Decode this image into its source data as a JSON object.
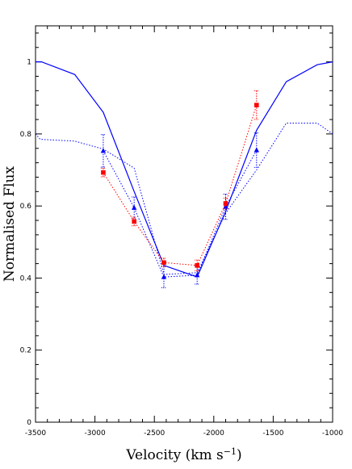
{
  "chart_data": {
    "type": "line",
    "title": "",
    "xlabel": "Velocity (km s",
    "xlabel_sup": "−1",
    "xlabel_close": ")",
    "ylabel": "Normalised Flux",
    "xlim": [
      -3500,
      -1000
    ],
    "ylim": [
      0,
      1.1
    ],
    "x_ticks": [
      -3500,
      -3000,
      -2500,
      -2000,
      -1500,
      -1000
    ],
    "x_tick_labels": [
      "-3500",
      "-3000",
      "-2500",
      "-2000",
      "-1500",
      "-1000"
    ],
    "y_ticks": [
      0,
      0.2,
      0.4,
      0.6,
      0.8,
      1
    ],
    "y_tick_labels": [
      "0",
      "0.2",
      "0.4",
      "0.6",
      "0.8",
      "1"
    ],
    "grid": false,
    "legend": "none",
    "series": [
      {
        "style": "solid-line",
        "color": "#0000ff",
        "x": [
          -3500,
          -3450,
          -3170,
          -2930,
          -2670,
          -2420,
          -2140,
          -1900,
          -1640,
          -1390,
          -1130,
          -1000
        ],
        "y": [
          1.0,
          1.0,
          0.965,
          0.86,
          0.64,
          0.435,
          0.403,
          0.585,
          0.81,
          0.945,
          0.992,
          1.0
        ]
      },
      {
        "style": "dotted-line",
        "color": "#0000ff",
        "x": [
          -3500,
          -3460,
          -3170,
          -2930,
          -2670,
          -2420,
          -2140,
          -1900,
          -1640,
          -1390,
          -1130,
          -1000
        ],
        "y": [
          0.8,
          0.785,
          0.78,
          0.758,
          0.705,
          0.41,
          0.415,
          0.58,
          0.7,
          0.83,
          0.83,
          0.8
        ]
      },
      {
        "style": "dotted-markers",
        "marker": "triangle",
        "color": "#0000ff",
        "x": [
          -2930,
          -2670,
          -2420,
          -2140,
          -1900,
          -1640
        ],
        "y": [
          0.753,
          0.595,
          0.403,
          0.408,
          0.598,
          0.755
        ],
        "err": [
          0.045,
          0.03,
          0.03,
          0.025,
          0.035,
          0.048
        ]
      },
      {
        "style": "dotted-markers",
        "marker": "square",
        "color": "#ff0000",
        "x": [
          -2930,
          -2670,
          -2420,
          -2140,
          -1900,
          -1640
        ],
        "y": [
          0.693,
          0.557,
          0.443,
          0.435,
          0.607,
          0.88
        ],
        "err": [
          0.012,
          0.012,
          0.012,
          0.015,
          0.015,
          0.04
        ]
      }
    ]
  }
}
